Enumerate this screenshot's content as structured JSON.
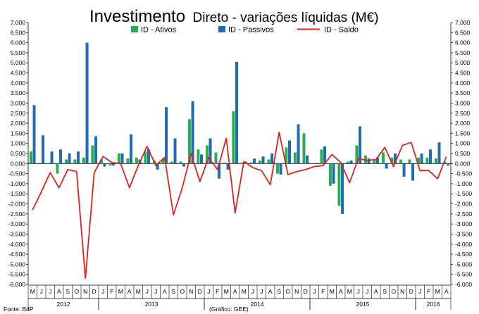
{
  "chart_data": {
    "type": "bar",
    "title_main": "Investimento",
    "title_rest": "Direto - variações líquidas (M€)",
    "categories": [
      "M",
      "J",
      "J",
      "A",
      "S",
      "O",
      "N",
      "D",
      "J",
      "F",
      "M",
      "A",
      "M",
      "J",
      "J",
      "A",
      "S",
      "O",
      "N",
      "D",
      "J",
      "F",
      "M",
      "A",
      "M",
      "J",
      "J",
      "A",
      "S",
      "O",
      "N",
      "D",
      "J",
      "F",
      "M",
      "A",
      "M",
      "J",
      "J",
      "A",
      "S",
      "O",
      "N",
      "D",
      "J",
      "F",
      "M",
      "A"
    ],
    "years": [
      {
        "label": "2012",
        "start": 0,
        "end": 7
      },
      {
        "label": "2013",
        "start": 8,
        "end": 19
      },
      {
        "label": "2014",
        "start": 20,
        "end": 31
      },
      {
        "label": "2015",
        "start": 32,
        "end": 43
      },
      {
        "label": "2016",
        "start": 44,
        "end": 47
      }
    ],
    "ylim": [
      -6,
      7
    ],
    "yticks": [
      "-6.000",
      "-5.500",
      "-5.000",
      "-4.500",
      "-4.000",
      "-3.500",
      "-3.000",
      "-2.500",
      "-2.000",
      "-1.500",
      "-1.000",
      "-0.500",
      "0.000",
      "0.500",
      "1.000",
      "1.500",
      "2.000",
      "2.500",
      "3.000",
      "3.500",
      "4.000",
      "4.500",
      "5.000",
      "5.500",
      "6.000",
      "6.500",
      "7.000"
    ],
    "series": [
      {
        "name": "ID - Ativos",
        "type": "bar",
        "color": "#22b14c",
        "values": [
          0.6,
          0,
          0,
          -0.5,
          0.2,
          0.2,
          0.3,
          0.9,
          0.2,
          -0.1,
          0.5,
          0.25,
          0.3,
          0.6,
          0.15,
          0.25,
          0.1,
          0.1,
          2.2,
          0.7,
          0.9,
          0.55,
          0.05,
          2.6,
          0.05,
          0.05,
          0.15,
          0.2,
          -0.5,
          0.8,
          0.55,
          1.5,
          0.0,
          0.7,
          -1.1,
          -2.1,
          0.1,
          0.9,
          0.4,
          0.2,
          0.55,
          0.3,
          0.2,
          0.2,
          0.3,
          0.3,
          0.25,
          0.1
        ]
      },
      {
        "name": "ID - Passivos",
        "type": "bar",
        "color": "#1f6bb4",
        "values": [
          2.9,
          1.4,
          0.6,
          0.7,
          0.5,
          0.6,
          6.0,
          1.35,
          -0.15,
          -0.1,
          0.5,
          1.45,
          0.2,
          0.7,
          -0.3,
          2.8,
          1.25,
          -0.15,
          3.1,
          0.45,
          1.25,
          -0.75,
          -0.3,
          5.05,
          0.1,
          0.25,
          0.35,
          0.5,
          -0.55,
          1.15,
          1.95,
          0.4,
          0.0,
          0.85,
          -1.0,
          -2.5,
          0.15,
          1.85,
          0.25,
          0.3,
          -0.25,
          0.5,
          -0.65,
          -0.85,
          0.5,
          0.7,
          1.05,
          -0.1
        ]
      },
      {
        "name": "ID - Saldo",
        "type": "line",
        "color": "#e0201a",
        "values": [
          -2.3,
          -1.4,
          -0.45,
          -1.2,
          -0.3,
          -0.4,
          -5.7,
          -0.45,
          0.35,
          0.05,
          0.0,
          -1.2,
          -0.1,
          0.85,
          -0.1,
          0.3,
          -2.55,
          -1.2,
          0.5,
          -0.9,
          0.3,
          -0.3,
          1.25,
          -2.45,
          0.1,
          -0.2,
          -0.35,
          -1.05,
          1.55,
          -0.55,
          -0.4,
          -0.3,
          -0.15,
          -0.1,
          0.45,
          0.05,
          -0.95,
          0.25,
          0.15,
          0.2,
          0.8,
          -0.15,
          0.9,
          1.05,
          -0.35,
          -0.35,
          -0.75,
          0.35
        ]
      }
    ]
  },
  "notes": {
    "source": "Fonte: BdP",
    "credit": "(Gráfico: GEE)"
  }
}
